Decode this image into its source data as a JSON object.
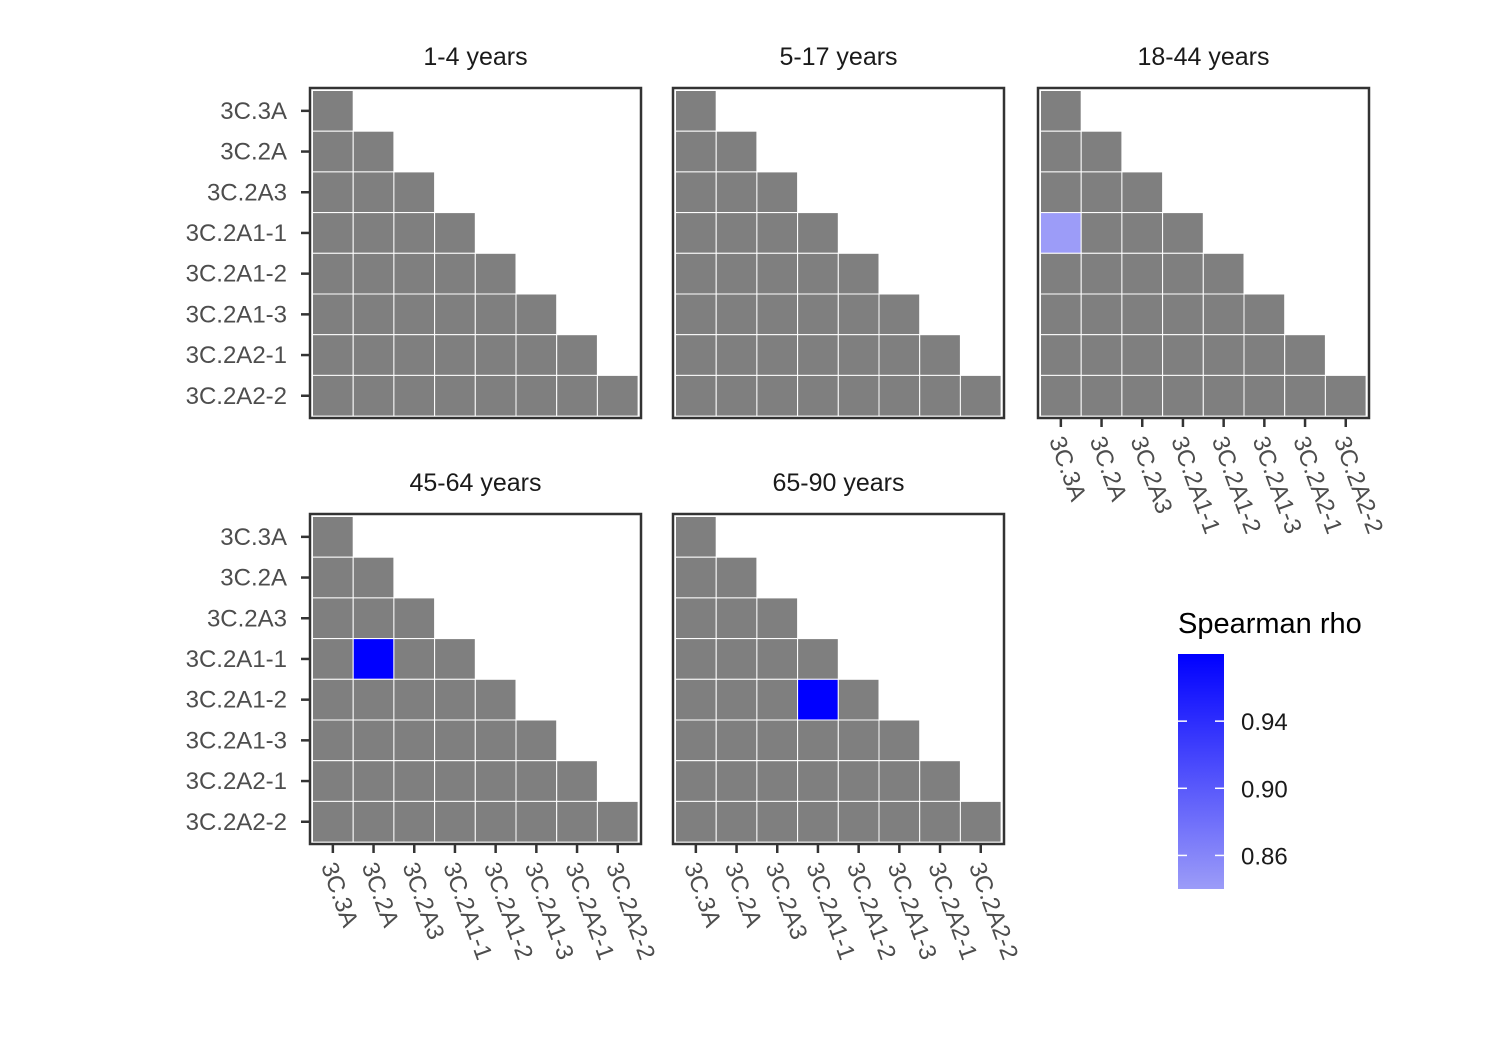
{
  "chart_data": {
    "type": "heatmap",
    "categories": [
      "3C.3A",
      "3C.2A",
      "3C.2A3",
      "3C.2A1-1",
      "3C.2A1-2",
      "3C.2A1-3",
      "3C.2A2-1",
      "3C.2A2-2"
    ],
    "na_color": "#7f7f7f",
    "color_low": "#9c9cf8",
    "color_high": "#0000ff",
    "panels": [
      {
        "title": "1-4 years",
        "show_x_labels": false,
        "show_y_labels": true,
        "highlighted": []
      },
      {
        "title": "5-17 years",
        "show_x_labels": false,
        "show_y_labels": false,
        "highlighted": []
      },
      {
        "title": "18-44 years",
        "show_x_labels": true,
        "show_y_labels": false,
        "highlighted": [
          {
            "row": "3C.2A1-1",
            "col": "3C.3A",
            "rho": 0.84
          }
        ]
      },
      {
        "title": "45-64 years",
        "show_x_labels": true,
        "show_y_labels": true,
        "highlighted": [
          {
            "row": "3C.2A1-1",
            "col": "3C.2A",
            "rho": 0.98
          }
        ]
      },
      {
        "title": "65-90 years",
        "show_x_labels": true,
        "show_y_labels": false,
        "highlighted": [
          {
            "row": "3C.2A1-2",
            "col": "3C.2A1-1",
            "rho": 0.98
          }
        ]
      }
    ],
    "legend": {
      "title": "Spearman rho",
      "min": 0.84,
      "max": 0.98,
      "ticks": [
        {
          "value": 0.86,
          "label": "0.86"
        },
        {
          "value": 0.9,
          "label": "0.90"
        },
        {
          "value": 0.94,
          "label": "0.94"
        }
      ]
    }
  }
}
